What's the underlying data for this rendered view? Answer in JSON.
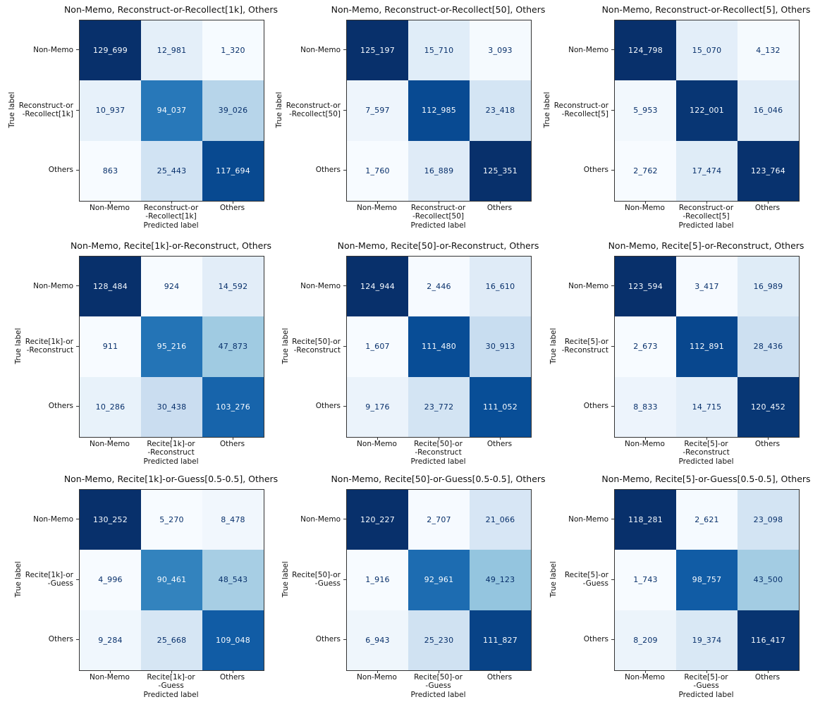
{
  "figure": {
    "background": "#ffffff",
    "colormap": "Blues",
    "colormap_anchors": [
      "#f7fbff",
      "#deebf7",
      "#c6dbef",
      "#9ecae1",
      "#6baed6",
      "#4292c6",
      "#2171b5",
      "#08519c",
      "#08306b"
    ],
    "cell_text_light": "#f7fbff",
    "cell_text_dark": "#08306b",
    "axis_color": "#333333",
    "label_color": "#111111"
  },
  "chart_data": [
    {
      "type": "heatmap",
      "title": "Non-Memo, Reconstruct-or-Recollect[1k], Others",
      "xlabel": "Predicted label",
      "ylabel": "True label",
      "row_labels": [
        "Non-Memo",
        "Reconstruct-or\n-Recollect[1k]",
        "Others"
      ],
      "col_labels": [
        "Non-Memo",
        "Reconstruct-or\n-Recollect[1k]",
        "Others"
      ],
      "values": [
        [
          129699,
          12981,
          1320
        ],
        [
          10937,
          94037,
          39026
        ],
        [
          863,
          25443,
          117694
        ]
      ],
      "cell_labels": [
        [
          "129_699",
          "12_981",
          "1_320"
        ],
        [
          "10_937",
          "94_037",
          "39_026"
        ],
        [
          "863",
          "25_443",
          "117_694"
        ]
      ]
    },
    {
      "type": "heatmap",
      "title": "Non-Memo, Reconstruct-or-Recollect[50], Others",
      "xlabel": "Predicted label",
      "ylabel": "True label",
      "row_labels": [
        "Non-Memo",
        "Reconstruct-or\n-Recollect[50]",
        "Others"
      ],
      "col_labels": [
        "Non-Memo",
        "Reconstruct-or\n-Recollect[50]",
        "Others"
      ],
      "values": [
        [
          125197,
          15710,
          3093
        ],
        [
          7597,
          112985,
          23418
        ],
        [
          1760,
          16889,
          125351
        ]
      ],
      "cell_labels": [
        [
          "125_197",
          "15_710",
          "3_093"
        ],
        [
          "7_597",
          "112_985",
          "23_418"
        ],
        [
          "1_760",
          "16_889",
          "125_351"
        ]
      ]
    },
    {
      "type": "heatmap",
      "title": "Non-Memo, Reconstruct-or-Recollect[5], Others",
      "xlabel": "Predicted label",
      "ylabel": "True label",
      "row_labels": [
        "Non-Memo",
        "Reconstruct-or\n-Recollect[5]",
        "Others"
      ],
      "col_labels": [
        "Non-Memo",
        "Reconstruct-or\n-Recollect[5]",
        "Others"
      ],
      "values": [
        [
          124798,
          15070,
          4132
        ],
        [
          5953,
          122001,
          16046
        ],
        [
          2762,
          17474,
          123764
        ]
      ],
      "cell_labels": [
        [
          "124_798",
          "15_070",
          "4_132"
        ],
        [
          "5_953",
          "122_001",
          "16_046"
        ],
        [
          "2_762",
          "17_474",
          "123_764"
        ]
      ]
    },
    {
      "type": "heatmap",
      "title": "Non-Memo, Recite[1k]-or-Reconstruct, Others",
      "xlabel": "Predicted label",
      "ylabel": "True label",
      "row_labels": [
        "Non-Memo",
        "Recite[1k]-or\n-Reconstruct",
        "Others"
      ],
      "col_labels": [
        "Non-Memo",
        "Recite[1k]-or\n-Reconstruct",
        "Others"
      ],
      "values": [
        [
          128484,
          924,
          14592
        ],
        [
          911,
          95216,
          47873
        ],
        [
          10286,
          30438,
          103276
        ]
      ],
      "cell_labels": [
        [
          "128_484",
          "924",
          "14_592"
        ],
        [
          "911",
          "95_216",
          "47_873"
        ],
        [
          "10_286",
          "30_438",
          "103_276"
        ]
      ]
    },
    {
      "type": "heatmap",
      "title": "Non-Memo, Recite[50]-or-Reconstruct, Others",
      "xlabel": "Predicted label",
      "ylabel": "True label",
      "row_labels": [
        "Non-Memo",
        "Recite[50]-or\n-Reconstruct",
        "Others"
      ],
      "col_labels": [
        "Non-Memo",
        "Recite[50]-or\n-Reconstruct",
        "Others"
      ],
      "values": [
        [
          124944,
          2446,
          16610
        ],
        [
          1607,
          111480,
          30913
        ],
        [
          9176,
          23772,
          111052
        ]
      ],
      "cell_labels": [
        [
          "124_944",
          "2_446",
          "16_610"
        ],
        [
          "1_607",
          "111_480",
          "30_913"
        ],
        [
          "9_176",
          "23_772",
          "111_052"
        ]
      ]
    },
    {
      "type": "heatmap",
      "title": "Non-Memo, Recite[5]-or-Reconstruct, Others",
      "xlabel": "Predicted label",
      "ylabel": "True label",
      "row_labels": [
        "Non-Memo",
        "Recite[5]-or\n-Reconstruct",
        "Others"
      ],
      "col_labels": [
        "Non-Memo",
        "Recite[5]-or\n-Reconstruct",
        "Others"
      ],
      "values": [
        [
          123594,
          3417,
          16989
        ],
        [
          2673,
          112891,
          28436
        ],
        [
          8833,
          14715,
          120452
        ]
      ],
      "cell_labels": [
        [
          "123_594",
          "3_417",
          "16_989"
        ],
        [
          "2_673",
          "112_891",
          "28_436"
        ],
        [
          "8_833",
          "14_715",
          "120_452"
        ]
      ]
    },
    {
      "type": "heatmap",
      "title": "Non-Memo, Recite[1k]-or-Guess[0.5-0.5], Others",
      "xlabel": "Predicted label",
      "ylabel": "True label",
      "row_labels": [
        "Non-Memo",
        "Recite[1k]-or\n-Guess",
        "Others"
      ],
      "col_labels": [
        "Non-Memo",
        "Recite[1k]-or\n-Guess",
        "Others"
      ],
      "values": [
        [
          130252,
          5270,
          8478
        ],
        [
          4996,
          90461,
          48543
        ],
        [
          9284,
          25668,
          109048
        ]
      ],
      "cell_labels": [
        [
          "130_252",
          "5_270",
          "8_478"
        ],
        [
          "4_996",
          "90_461",
          "48_543"
        ],
        [
          "9_284",
          "25_668",
          "109_048"
        ]
      ]
    },
    {
      "type": "heatmap",
      "title": "Non-Memo, Recite[50]-or-Guess[0.5-0.5], Others",
      "xlabel": "Predicted label",
      "ylabel": "True label",
      "row_labels": [
        "Non-Memo",
        "Recite[50]-or\n-Guess",
        "Others"
      ],
      "col_labels": [
        "Non-Memo",
        "Recite[50]-or\n-Guess",
        "Others"
      ],
      "values": [
        [
          120227,
          2707,
          21066
        ],
        [
          1916,
          92961,
          49123
        ],
        [
          6943,
          25230,
          111827
        ]
      ],
      "cell_labels": [
        [
          "120_227",
          "2_707",
          "21_066"
        ],
        [
          "1_916",
          "92_961",
          "49_123"
        ],
        [
          "6_943",
          "25_230",
          "111_827"
        ]
      ]
    },
    {
      "type": "heatmap",
      "title": "Non-Memo, Recite[5]-or-Guess[0.5-0.5], Others",
      "xlabel": "Predicted label",
      "ylabel": "True label",
      "row_labels": [
        "Non-Memo",
        "Recite[5]-or\n-Guess",
        "Others"
      ],
      "col_labels": [
        "Non-Memo",
        "Recite[5]-or\n-Guess",
        "Others"
      ],
      "values": [
        [
          118281,
          2621,
          23098
        ],
        [
          1743,
          98757,
          43500
        ],
        [
          8209,
          19374,
          116417
        ]
      ],
      "cell_labels": [
        [
          "118_281",
          "2_621",
          "23_098"
        ],
        [
          "1_743",
          "98_757",
          "43_500"
        ],
        [
          "8_209",
          "19_374",
          "116_417"
        ]
      ]
    }
  ]
}
